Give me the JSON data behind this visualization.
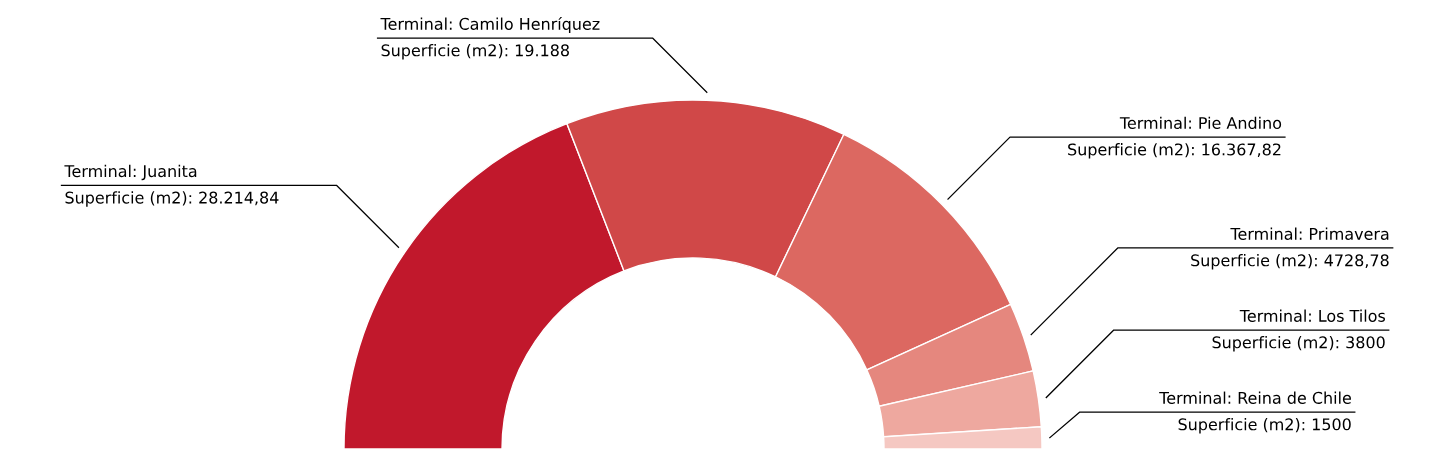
{
  "chart_data": {
    "type": "donut",
    "categories": [
      "Terminal: Juanita",
      "Terminal: Camilo Henríquez",
      "Terminal: Pie Andino",
      "Terminal: Primavera",
      "Terminal: Los Tilos",
      "Terminal: Reina de Chile"
    ],
    "values": [
      28214.84,
      19188,
      16367.82,
      4728.78,
      3800,
      1500
    ],
    "value_labels": [
      "Superficie (m2): 28.214,84",
      "Superficie (m2): 19.188",
      "Superficie (m2): 16.367,82",
      "Superficie (m2): 4728,78",
      "Superficie (m2): 3800",
      "Superficie (m2): 1500"
    ],
    "colors": [
      "#c1182c",
      "#d04848",
      "#dc6861",
      "#e5877e",
      "#eea89f",
      "#f5c8c2"
    ]
  }
}
